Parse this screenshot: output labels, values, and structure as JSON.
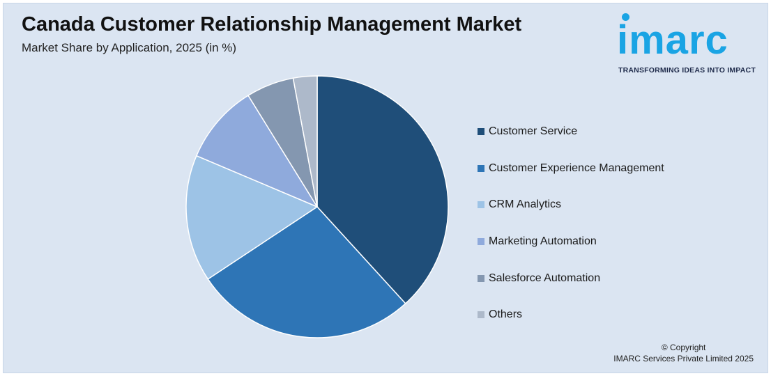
{
  "header": {
    "title": "Canada Customer Relationship Management Market",
    "subtitle": "Market Share by Application, 2025 (in %)"
  },
  "logo": {
    "wordmark": "imarc",
    "tagline": "TRANSFORMING IDEAS INTO IMPACT",
    "color": "#1aa4e4"
  },
  "chart_data": {
    "type": "pie",
    "title": "Canada Customer Relationship Management Market",
    "subtitle": "Market Share by Application, 2025 (in %)",
    "categories": [
      "Customer Service",
      "Customer Experience Management",
      "CRM Analytics",
      "Marketing Automation",
      "Salesforce Automation",
      "Others"
    ],
    "values": [
      39,
      28,
      16,
      10,
      6,
      3
    ],
    "colors": [
      "#1f4e79",
      "#2e75b6",
      "#9dc3e6",
      "#8faadc",
      "#8497b0",
      "#adb9ca"
    ],
    "legend_position": "right"
  },
  "footer": {
    "copyright_line1": "© Copyright",
    "copyright_line2": "IMARC Services Private Limited 2025"
  }
}
